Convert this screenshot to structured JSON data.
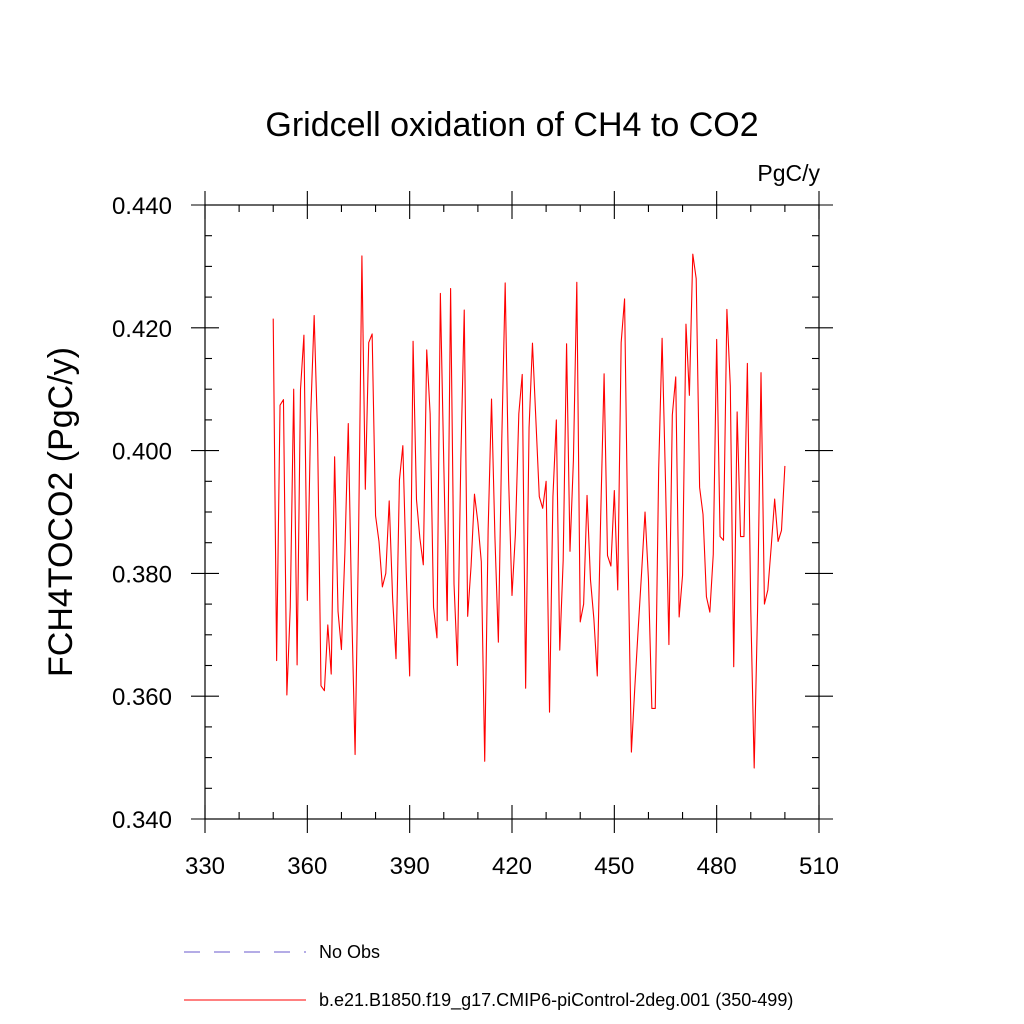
{
  "chart_data": {
    "type": "line",
    "title": "Gridcell oxidation of CH4 to CO2",
    "units": "PgC/y",
    "ylabel": "FCH4TOCO2  (PgC/y)",
    "xlabel": "",
    "xlim": [
      330,
      510
    ],
    "ylim": [
      0.34,
      0.44
    ],
    "x_ticks": [
      330,
      360,
      390,
      420,
      450,
      480,
      510
    ],
    "x_tick_labels": [
      "330",
      "360",
      "390",
      "420",
      "450",
      "480",
      "510"
    ],
    "y_ticks": [
      0.34,
      0.36,
      0.38,
      0.4,
      0.42,
      0.44
    ],
    "y_tick_labels": [
      "0.340",
      "0.360",
      "0.380",
      "0.400",
      "0.420",
      "0.440"
    ],
    "series": [
      {
        "name": "b.e21.B1850.f19_g17.CMIP6-piControl-2deg.001 (350-499)",
        "color": "#ff0000",
        "style": "solid",
        "x_start": 350,
        "x_step": 1,
        "values": [
          0.4215,
          0.3658,
          0.4074,
          0.4083,
          0.3602,
          0.3745,
          0.41,
          0.3651,
          0.41,
          0.4188,
          0.3756,
          0.406,
          0.422,
          0.4026,
          0.3617,
          0.3609,
          0.3716,
          0.3636,
          0.399,
          0.3738,
          0.3676,
          0.3833,
          0.4044,
          0.3743,
          0.3505,
          0.385,
          0.4317,
          0.3937,
          0.4176,
          0.419,
          0.3894,
          0.3852,
          0.3778,
          0.38,
          0.3918,
          0.376,
          0.3661,
          0.3952,
          0.4008,
          0.38,
          0.3633,
          0.4178,
          0.392,
          0.3857,
          0.3814,
          0.4164,
          0.406,
          0.3745,
          0.3695,
          0.4256,
          0.3979,
          0.3723,
          0.4264,
          0.3783,
          0.365,
          0.3986,
          0.4229,
          0.373,
          0.3812,
          0.3929,
          0.3883,
          0.3819,
          0.3494,
          0.387,
          0.4084,
          0.3858,
          0.3688,
          0.4017,
          0.4273,
          0.3954,
          0.3764,
          0.3864,
          0.406,
          0.4124,
          0.3613,
          0.4037,
          0.4175,
          0.405,
          0.3925,
          0.3906,
          0.395,
          0.3574,
          0.3925,
          0.405,
          0.3675,
          0.3821,
          0.4174,
          0.3836,
          0.3984,
          0.4274,
          0.3721,
          0.375,
          0.3927,
          0.379,
          0.3726,
          0.3633,
          0.3892,
          0.4125,
          0.3829,
          0.3812,
          0.3935,
          0.3773,
          0.4176,
          0.4247,
          0.3839,
          0.3509,
          0.3614,
          0.371,
          0.3802,
          0.39,
          0.3791,
          0.358,
          0.358,
          0.397,
          0.4183,
          0.395,
          0.3684,
          0.4058,
          0.412,
          0.3729,
          0.3797,
          0.4206,
          0.409,
          0.432,
          0.428,
          0.394,
          0.3896,
          0.3762,
          0.3737,
          0.3831,
          0.4181,
          0.386,
          0.3854,
          0.423,
          0.4105,
          0.3648,
          0.4063,
          0.386,
          0.386,
          0.4142,
          0.3741,
          0.3483,
          0.3743,
          0.4127,
          0.375,
          0.3773,
          0.3844,
          0.3921,
          0.3852,
          0.387,
          0.3975
        ]
      }
    ],
    "legend": [
      {
        "label": "No Obs",
        "color": "#6a5acd",
        "style": "dashed"
      },
      {
        "label": "b.e21.B1850.f19_g17.CMIP6-piControl-2deg.001 (350-499)",
        "color": "#ff0000",
        "style": "solid"
      }
    ]
  }
}
